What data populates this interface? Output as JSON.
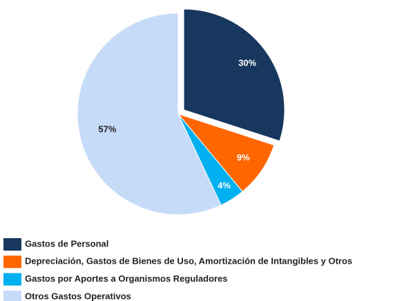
{
  "chart_data": {
    "type": "pie",
    "categories": [
      "Gastos de Personal",
      "Depreciación, Gastos de Bienes de Uso, Amortización de Intangibles y Otros",
      "Gastos por Aportes a Organismos Reguladores",
      "Otros Gastos Operativos"
    ],
    "values": [
      30,
      9,
      4,
      57
    ],
    "value_labels": [
      "30%",
      "9%",
      "4%",
      "57%"
    ],
    "colors": [
      "#17375e",
      "#ff6600",
      "#00b0f0",
      "#c6dbf7"
    ],
    "legend": "bottom"
  }
}
